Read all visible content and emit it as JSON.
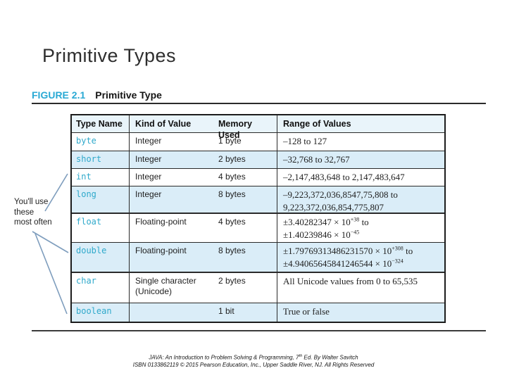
{
  "slide": {
    "title": "Primitive Types",
    "figure_label": "FIGURE 2.1",
    "figure_title": "Primitive Type"
  },
  "annotation": {
    "lines": [
      "You'll use",
      "these",
      "most often"
    ]
  },
  "table": {
    "headers": [
      "Type Name",
      "Kind of Value",
      "Memory Used",
      "Range of Values"
    ],
    "rows": [
      {
        "type": "byte",
        "kind": "Integer",
        "memory": "1 byte",
        "shaded": false,
        "group_start": false,
        "range": [
          [
            "t",
            "–128 to 127"
          ]
        ]
      },
      {
        "type": "short",
        "kind": "Integer",
        "memory": "2 bytes",
        "shaded": true,
        "group_start": false,
        "range": [
          [
            "t",
            "–32,768 to 32,767"
          ]
        ]
      },
      {
        "type": "int",
        "kind": "Integer",
        "memory": "4 bytes",
        "shaded": false,
        "group_start": false,
        "range": [
          [
            "t",
            "–2,147,483,648 to 2,147,483,647"
          ]
        ]
      },
      {
        "type": "long",
        "kind": "Integer",
        "memory": "8 bytes",
        "shaded": true,
        "group_start": false,
        "range": [
          [
            "t",
            "–9,223,372,036,8547,75,808 to"
          ],
          [
            "br"
          ],
          [
            "t",
            "9,223,372,036,854,775,807"
          ]
        ]
      },
      {
        "type": "float",
        "kind": "Floating-point",
        "memory": "4 bytes",
        "shaded": false,
        "group_start": true,
        "range": [
          [
            "t",
            "±3.40282347 × 10"
          ],
          [
            "s",
            "+38"
          ],
          [
            "t",
            " to"
          ],
          [
            "br"
          ],
          [
            "t",
            "±1.40239846 × 10"
          ],
          [
            "s",
            "−45"
          ]
        ]
      },
      {
        "type": "double",
        "kind": "Floating-point",
        "memory": "8 bytes",
        "shaded": true,
        "group_start": false,
        "range": [
          [
            "t",
            "±1.79769313486231570 × 10"
          ],
          [
            "s",
            "+308"
          ],
          [
            "t",
            " to"
          ],
          [
            "br"
          ],
          [
            "t",
            "±4.94065645841246544 × 10"
          ],
          [
            "s",
            "−324"
          ]
        ]
      },
      {
        "type": "char",
        "kind": "Single character (Unicode)",
        "memory": "2 bytes",
        "shaded": false,
        "group_start": true,
        "range": [
          [
            "t",
            "All Unicode values from 0 to 65,535"
          ]
        ]
      },
      {
        "type": "boolean",
        "kind": "",
        "memory": "1 bit",
        "shaded": true,
        "group_start": false,
        "range": [
          [
            "t",
            "True or false"
          ]
        ]
      }
    ]
  },
  "footer": {
    "line1": [
      [
        "t",
        "JAVA: An Introduction to Problem Solving & Programming, 7"
      ],
      [
        "s",
        "th"
      ],
      [
        "t",
        " Ed. By Walter Savitch"
      ]
    ],
    "line2": [
      [
        "t",
        "ISBN 0133862119 © 2015 Pearson Education, Inc., Upper Saddle River, NJ. All Rights Reserved"
      ]
    ]
  },
  "colors": {
    "figure_label_blue": "#29a9d4",
    "type_name_cyan": "#2fa9cb",
    "shaded_row_blue": "#daedf8",
    "header_row_blue": "#e9f4fa",
    "pointer_line_slate": "#7e9dbd",
    "table_border": "#1c1c1c"
  }
}
